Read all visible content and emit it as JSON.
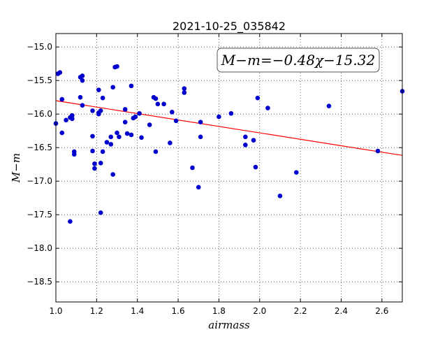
{
  "chart_data": {
    "type": "scatter",
    "title": "2021-10-25_035842",
    "xlabel": "airmass",
    "ylabel": "M−m",
    "xlim": [
      1.0,
      2.7
    ],
    "ylim": [
      -18.8,
      -14.8
    ],
    "y_inverted": true,
    "grid": true,
    "x_ticks": [
      "1.0",
      "1.2",
      "1.4",
      "1.6",
      "1.8",
      "2.0",
      "2.2",
      "2.4",
      "2.6"
    ],
    "x_tick_values": [
      1.0,
      1.2,
      1.4,
      1.6,
      1.8,
      2.0,
      2.2,
      2.4,
      2.6
    ],
    "y_ticks": [
      "−15.0",
      "−15.5",
      "−16.0",
      "−16.5",
      "−17.0",
      "−17.5",
      "−18.0",
      "−18.5"
    ],
    "y_tick_values": [
      -15.0,
      -15.5,
      -16.0,
      -16.5,
      -17.0,
      -17.5,
      -18.0,
      -18.5
    ],
    "annotation": "M−m=−0.48χ−15.32",
    "fit": {
      "slope": -0.48,
      "intercept": -15.32,
      "color": "#ff0000"
    },
    "point_color": "#0000cc",
    "points": [
      {
        "x": 1.0,
        "y": -16.14
      },
      {
        "x": 1.01,
        "y": -15.4
      },
      {
        "x": 1.02,
        "y": -15.38
      },
      {
        "x": 1.03,
        "y": -16.28
      },
      {
        "x": 1.03,
        "y": -15.78
      },
      {
        "x": 1.05,
        "y": -16.09
      },
      {
        "x": 1.07,
        "y": -17.6
      },
      {
        "x": 1.07,
        "y": -16.05
      },
      {
        "x": 1.08,
        "y": -16.02
      },
      {
        "x": 1.08,
        "y": -16.07
      },
      {
        "x": 1.09,
        "y": -16.56
      },
      {
        "x": 1.09,
        "y": -16.6
      },
      {
        "x": 1.12,
        "y": -15.75
      },
      {
        "x": 1.12,
        "y": -15.45
      },
      {
        "x": 1.13,
        "y": -15.43
      },
      {
        "x": 1.13,
        "y": -15.5
      },
      {
        "x": 1.13,
        "y": -15.87
      },
      {
        "x": 1.18,
        "y": -15.95
      },
      {
        "x": 1.18,
        "y": -16.33
      },
      {
        "x": 1.18,
        "y": -16.55
      },
      {
        "x": 1.19,
        "y": -16.74
      },
      {
        "x": 1.19,
        "y": -16.81
      },
      {
        "x": 1.21,
        "y": -15.98
      },
      {
        "x": 1.21,
        "y": -16.0
      },
      {
        "x": 1.21,
        "y": -15.64
      },
      {
        "x": 1.22,
        "y": -15.95
      },
      {
        "x": 1.22,
        "y": -16.73
      },
      {
        "x": 1.22,
        "y": -17.47
      },
      {
        "x": 1.23,
        "y": -15.76
      },
      {
        "x": 1.23,
        "y": -16.56
      },
      {
        "x": 1.25,
        "y": -16.42
      },
      {
        "x": 1.27,
        "y": -16.45
      },
      {
        "x": 1.27,
        "y": -16.34
      },
      {
        "x": 1.28,
        "y": -15.6
      },
      {
        "x": 1.28,
        "y": -16.9
      },
      {
        "x": 1.29,
        "y": -15.3
      },
      {
        "x": 1.3,
        "y": -15.29
      },
      {
        "x": 1.3,
        "y": -16.28
      },
      {
        "x": 1.31,
        "y": -16.34
      },
      {
        "x": 1.34,
        "y": -15.93
      },
      {
        "x": 1.34,
        "y": -16.12
      },
      {
        "x": 1.35,
        "y": -16.29
      },
      {
        "x": 1.37,
        "y": -16.31
      },
      {
        "x": 1.37,
        "y": -15.58
      },
      {
        "x": 1.38,
        "y": -16.06
      },
      {
        "x": 1.39,
        "y": -16.04
      },
      {
        "x": 1.41,
        "y": -15.99
      },
      {
        "x": 1.42,
        "y": -16.35
      },
      {
        "x": 1.46,
        "y": -16.16
      },
      {
        "x": 1.48,
        "y": -15.75
      },
      {
        "x": 1.49,
        "y": -15.77
      },
      {
        "x": 1.49,
        "y": -16.56
      },
      {
        "x": 1.5,
        "y": -15.85
      },
      {
        "x": 1.53,
        "y": -15.85
      },
      {
        "x": 1.56,
        "y": -16.43
      },
      {
        "x": 1.57,
        "y": -15.97
      },
      {
        "x": 1.59,
        "y": -16.1
      },
      {
        "x": 1.63,
        "y": -15.68
      },
      {
        "x": 1.63,
        "y": -15.62
      },
      {
        "x": 1.67,
        "y": -16.8
      },
      {
        "x": 1.7,
        "y": -17.09
      },
      {
        "x": 1.71,
        "y": -16.12
      },
      {
        "x": 1.71,
        "y": -16.34
      },
      {
        "x": 1.8,
        "y": -16.04
      },
      {
        "x": 1.86,
        "y": -15.99
      },
      {
        "x": 1.93,
        "y": -16.34
      },
      {
        "x": 1.93,
        "y": -16.46
      },
      {
        "x": 1.97,
        "y": -16.39
      },
      {
        "x": 1.98,
        "y": -16.79
      },
      {
        "x": 1.99,
        "y": -15.76
      },
      {
        "x": 2.04,
        "y": -15.91
      },
      {
        "x": 2.1,
        "y": -17.22
      },
      {
        "x": 2.18,
        "y": -16.87
      },
      {
        "x": 2.34,
        "y": -15.88
      },
      {
        "x": 2.58,
        "y": -16.55
      },
      {
        "x": 2.7,
        "y": -15.66
      }
    ]
  }
}
